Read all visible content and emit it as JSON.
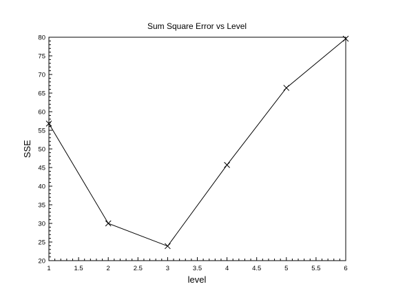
{
  "chart_data": {
    "type": "line",
    "title": "Sum Square Error vs Level",
    "xlabel": "level",
    "ylabel": "SSE",
    "xlim": [
      1,
      6
    ],
    "ylim": [
      20,
      80
    ],
    "xticks": [
      "1",
      "1.5",
      "2",
      "2.5",
      "3",
      "3.5",
      "4",
      "4.5",
      "5",
      "5.5",
      "6"
    ],
    "yticks": [
      "20",
      "25",
      "30",
      "35",
      "40",
      "45",
      "50",
      "55",
      "60",
      "65",
      "70",
      "75",
      "80"
    ],
    "grid": false,
    "marker": "x",
    "line_color": "#000000",
    "series": [
      {
        "x": [
          1,
          2,
          3,
          4,
          5,
          6
        ],
        "y": [
          56.8,
          30.0,
          23.9,
          45.7,
          66.4,
          79.6
        ]
      }
    ]
  }
}
